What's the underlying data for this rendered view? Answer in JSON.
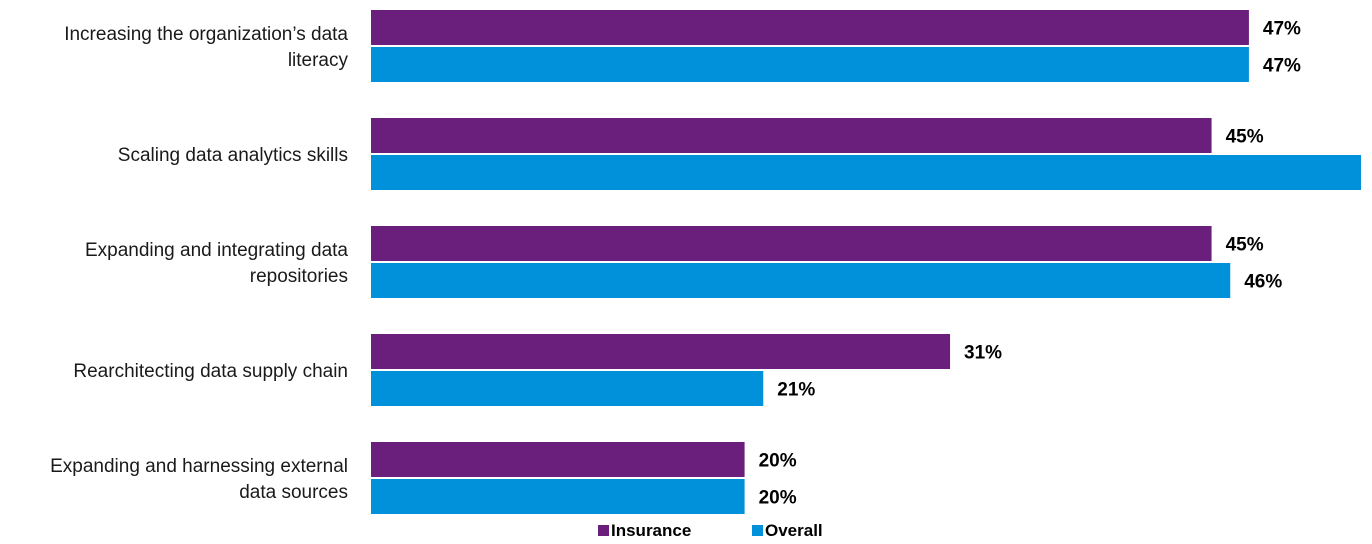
{
  "chart_data": {
    "type": "bar",
    "orientation": "horizontal",
    "categories": [
      [
        "Increasing the organization’s data",
        "literacy"
      ],
      [
        "Scaling data analytics skills"
      ],
      [
        "Expanding and integrating data",
        "repositories"
      ],
      [
        "Rearchitecting data supply chain"
      ],
      [
        "Expanding and harnessing external",
        "data sources"
      ]
    ],
    "series": [
      {
        "name": "Insurance",
        "color": "#6b1f7c",
        "values": [
          47,
          45,
          45,
          31,
          20
        ]
      },
      {
        "name": "Overall",
        "color": "#0091da",
        "values": [
          47,
          53,
          46,
          21,
          20
        ]
      }
    ],
    "value_format": "percent",
    "xlim": [
      0,
      53
    ],
    "grid": false,
    "legend_position": "bottom-center",
    "title": "",
    "xlabel": "",
    "ylabel": ""
  }
}
